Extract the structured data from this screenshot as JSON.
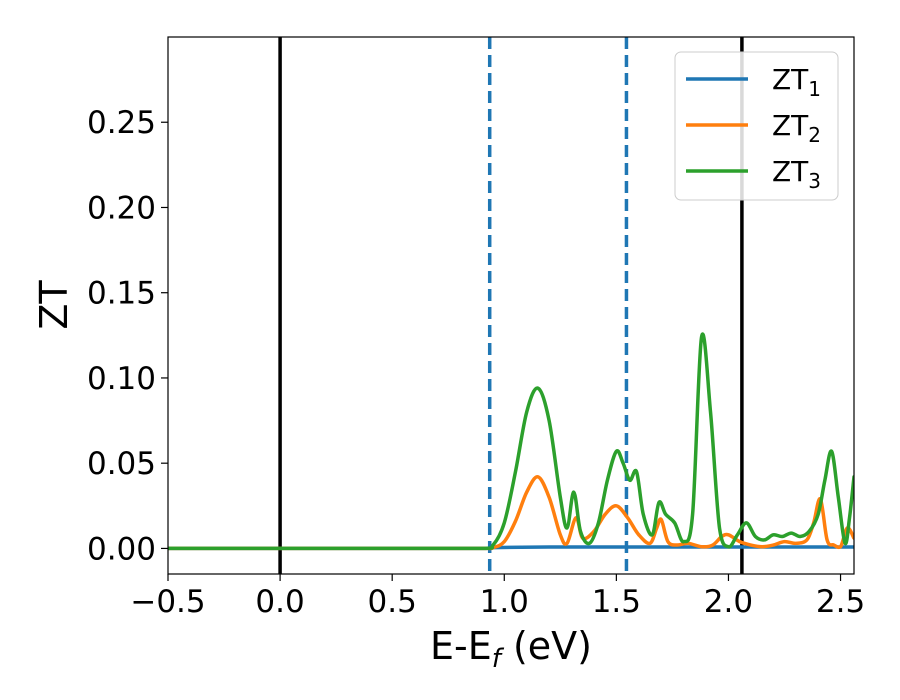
{
  "chart_data": {
    "type": "line",
    "title": "",
    "xlabel": "E-E",
    "xlabel_sub": "f",
    "xlabel_unit": " (eV)",
    "ylabel": "ZT",
    "xlim": [
      -0.5,
      2.56
    ],
    "ylim": [
      -0.015,
      0.3
    ],
    "xticks": [
      -0.5,
      0.0,
      0.5,
      1.0,
      1.5,
      2.0,
      2.5
    ],
    "xtick_labels": [
      "−0.5",
      "0.0",
      "0.5",
      "1.0",
      "1.5",
      "2.0",
      "2.5"
    ],
    "yticks": [
      0.0,
      0.05,
      0.1,
      0.15,
      0.2,
      0.25
    ],
    "ytick_labels": [
      "0.00",
      "0.05",
      "0.10",
      "0.15",
      "0.20",
      "0.25"
    ],
    "grid": false,
    "legend_position": "top-right",
    "vlines": [
      {
        "x": 0.0,
        "style": "solid",
        "color": "#000000"
      },
      {
        "x": 2.06,
        "style": "solid",
        "color": "#000000"
      },
      {
        "x": 0.935,
        "style": "dashed",
        "color": "#1f77b4"
      },
      {
        "x": 1.545,
        "style": "dashed",
        "color": "#1f77b4"
      }
    ],
    "series": [
      {
        "name": "ZT",
        "name_sub": "1",
        "color": "#1f77b4",
        "x": [
          -0.5,
          0.0,
          0.5,
          0.9,
          0.95,
          1.2,
          1.5,
          2.0,
          2.5,
          2.56
        ],
        "y": [
          0.0,
          0.0,
          0.0,
          0.0,
          0.0005,
          0.0008,
          0.0008,
          0.0008,
          0.0008,
          0.0008
        ]
      },
      {
        "name": "ZT",
        "name_sub": "2",
        "color": "#ff7f0e",
        "x": [
          -0.5,
          0.0,
          0.5,
          0.9,
          0.95,
          1.0,
          1.05,
          1.1,
          1.15,
          1.2,
          1.25,
          1.28,
          1.32,
          1.35,
          1.4,
          1.45,
          1.5,
          1.55,
          1.6,
          1.65,
          1.68,
          1.7,
          1.73,
          1.77,
          1.82,
          1.88,
          1.93,
          1.97,
          2.0,
          2.05,
          2.1,
          2.15,
          2.2,
          2.25,
          2.3,
          2.35,
          2.38,
          2.41,
          2.44,
          2.47,
          2.5,
          2.53,
          2.56
        ],
        "y": [
          0.0,
          0.0,
          0.0,
          0.0,
          0.0005,
          0.004,
          0.016,
          0.033,
          0.042,
          0.03,
          0.008,
          0.003,
          0.018,
          0.006,
          0.01,
          0.02,
          0.025,
          0.018,
          0.008,
          0.003,
          0.012,
          0.017,
          0.004,
          0.002,
          0.003,
          0.001,
          0.002,
          0.007,
          0.008,
          0.004,
          0.002,
          0.001,
          0.002,
          0.004,
          0.003,
          0.005,
          0.015,
          0.029,
          0.005,
          0.002,
          0.001,
          0.012,
          0.006
        ]
      },
      {
        "name": "ZT",
        "name_sub": "3",
        "color": "#2ca02c",
        "x": [
          -0.5,
          0.0,
          0.5,
          0.9,
          0.95,
          1.0,
          1.05,
          1.1,
          1.15,
          1.2,
          1.25,
          1.28,
          1.31,
          1.34,
          1.38,
          1.42,
          1.46,
          1.5,
          1.53,
          1.56,
          1.59,
          1.62,
          1.66,
          1.69,
          1.72,
          1.76,
          1.8,
          1.84,
          1.88,
          1.92,
          1.96,
          2.0,
          2.04,
          2.08,
          2.12,
          2.16,
          2.2,
          2.24,
          2.28,
          2.32,
          2.36,
          2.4,
          2.43,
          2.46,
          2.49,
          2.52,
          2.54,
          2.56
        ],
        "y": [
          0.0,
          0.0,
          0.0,
          0.0,
          0.002,
          0.015,
          0.045,
          0.08,
          0.094,
          0.075,
          0.03,
          0.012,
          0.033,
          0.01,
          0.003,
          0.015,
          0.04,
          0.057,
          0.05,
          0.04,
          0.045,
          0.02,
          0.008,
          0.027,
          0.02,
          0.015,
          0.004,
          0.02,
          0.124,
          0.08,
          0.012,
          0.001,
          0.008,
          0.015,
          0.007,
          0.005,
          0.008,
          0.007,
          0.009,
          0.007,
          0.01,
          0.02,
          0.04,
          0.057,
          0.03,
          0.003,
          0.018,
          0.042
        ]
      }
    ]
  }
}
